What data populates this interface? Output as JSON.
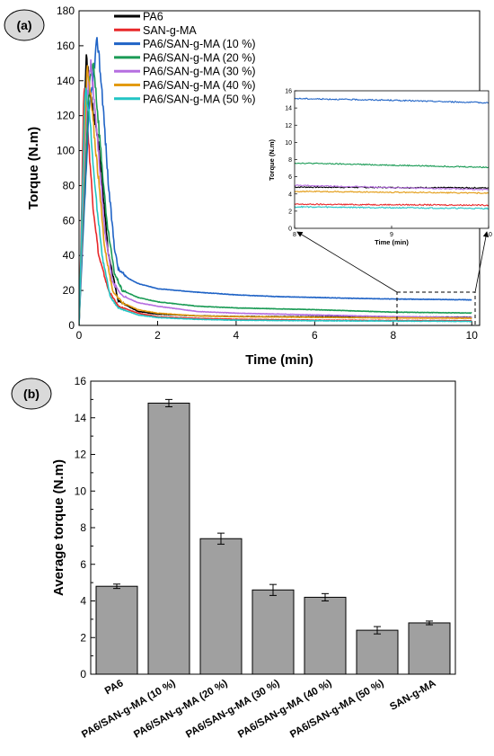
{
  "panels": {
    "a": "(a)",
    "b": "(b)"
  },
  "chart_data": [
    {
      "type": "line",
      "panel": "(a)",
      "xlabel": "Time (min)",
      "ylabel": "Torque (N.m)",
      "xlim": [
        0,
        10.2
      ],
      "ylim": [
        0,
        180
      ],
      "xticks": [
        0,
        2,
        4,
        6,
        8,
        10
      ],
      "yticks": [
        0,
        20,
        40,
        60,
        80,
        100,
        120,
        140,
        160,
        180
      ],
      "legend_position": "top",
      "series": [
        {
          "name": "PA6",
          "color": "#000000",
          "peak_x": 0.18,
          "peak": 155,
          "plateau": 4.8,
          "x": [
            0,
            0.1,
            0.18,
            0.3,
            0.5,
            0.75,
            1,
            1.5,
            2,
            3,
            4,
            6,
            8,
            10
          ],
          "y": [
            0,
            80,
            155,
            130,
            105,
            40,
            14,
            8,
            6.5,
            5.5,
            5.1,
            4.9,
            4.8,
            4.7
          ]
        },
        {
          "name": "SAN-g-MA",
          "color": "#e8282a",
          "peak_x": 0.12,
          "peak": 138,
          "plateau": 2.8,
          "x": [
            0,
            0.07,
            0.12,
            0.2,
            0.35,
            0.5,
            0.75,
            1,
            1.5,
            2,
            3,
            4,
            6,
            8,
            10
          ],
          "y": [
            0,
            70,
            138,
            120,
            70,
            40,
            20,
            11,
            7,
            5,
            4,
            3.5,
            3,
            2.8,
            2.7
          ]
        },
        {
          "name": "PA6/SAN-g-MA (10 %)",
          "color": "#1f63c6",
          "peak_x": 0.47,
          "peak": 164,
          "plateau": 14.8,
          "x": [
            0,
            0.1,
            0.25,
            0.47,
            0.6,
            0.75,
            0.9,
            1,
            1.25,
            1.5,
            2,
            3,
            4,
            5,
            6,
            7,
            8,
            9,
            10
          ],
          "y": [
            0,
            50,
            120,
            164,
            130,
            80,
            45,
            32,
            27,
            24,
            21,
            19,
            17.5,
            16.5,
            16,
            15.5,
            15.1,
            14.9,
            14.6
          ]
        },
        {
          "name": "PA6/SAN-g-MA (20 %)",
          "color": "#1a9b55",
          "peak_x": 0.37,
          "peak": 151,
          "plateau": 7.4,
          "x": [
            0,
            0.1,
            0.25,
            0.37,
            0.5,
            0.7,
            0.9,
            1.1,
            1.5,
            2,
            3,
            4,
            6,
            8,
            10
          ],
          "y": [
            0,
            60,
            135,
            151,
            115,
            60,
            30,
            20,
            16,
            13.5,
            11,
            10,
            9,
            7.6,
            7.1
          ]
        },
        {
          "name": "PA6/SAN-g-MA (30 %)",
          "color": "#b56fe0",
          "peak_x": 0.3,
          "peak": 150,
          "plateau": 4.6,
          "x": [
            0,
            0.1,
            0.2,
            0.3,
            0.45,
            0.65,
            0.85,
            1.1,
            1.5,
            2,
            3,
            4,
            6,
            8,
            10
          ],
          "y": [
            0,
            70,
            130,
            150,
            112,
            55,
            25,
            17,
            13,
            11,
            8,
            7,
            6,
            5,
            4.5
          ]
        },
        {
          "name": "PA6/SAN-g-MA (40 %)",
          "color": "#e39b12",
          "peak_x": 0.2,
          "peak": 148,
          "plateau": 4.2,
          "x": [
            0,
            0.08,
            0.2,
            0.3,
            0.45,
            0.65,
            0.85,
            1.1,
            1.5,
            2,
            3,
            4,
            6,
            8,
            10
          ],
          "y": [
            0,
            65,
            148,
            130,
            95,
            45,
            20,
            13,
            9,
            7,
            5.5,
            5,
            4.6,
            4.3,
            4.1
          ]
        },
        {
          "name": "PA6/SAN-g-MA (50 %)",
          "color": "#22c4c4",
          "peak_x": 0.15,
          "peak": 135,
          "plateau": 2.4,
          "x": [
            0,
            0.07,
            0.15,
            0.25,
            0.4,
            0.6,
            0.8,
            1,
            1.5,
            2,
            3,
            4,
            6,
            8,
            10
          ],
          "y": [
            0,
            60,
            135,
            125,
            80,
            38,
            16,
            10,
            6,
            4.5,
            3.5,
            3,
            2.7,
            2.5,
            2.3
          ]
        }
      ],
      "inset": {
        "xlabel": "Time (min)",
        "ylabel": "Torque (N.m)",
        "xlim": [
          8,
          10
        ],
        "ylim": [
          0,
          16
        ],
        "xticks": [
          8,
          9,
          10
        ],
        "yticks": [
          0,
          2,
          4,
          6,
          8,
          10,
          12,
          14,
          16
        ],
        "zoom_box": {
          "x": [
            8,
            10
          ],
          "y": [
            0,
            17
          ]
        }
      }
    },
    {
      "type": "bar",
      "panel": "(b)",
      "xlabel": "",
      "ylabel": "Average torque (N.m)",
      "ylim": [
        0,
        16
      ],
      "yticks": [
        0,
        2,
        4,
        6,
        8,
        10,
        12,
        14,
        16
      ],
      "categories": [
        "PA6",
        "PA6/SAN-g-MA (10 %)",
        "PA6/SAN-g-MA (20 %)",
        "PA6/SAN-g-MA (30 %)",
        "PA6/SAN-g-MA (40 %)",
        "PA6/SAN-g-MA (50 %)",
        "SAN-g-MA"
      ],
      "values": [
        4.8,
        14.8,
        7.4,
        4.6,
        4.2,
        2.4,
        2.8
      ],
      "errors": [
        0.12,
        0.2,
        0.3,
        0.3,
        0.2,
        0.2,
        0.1
      ],
      "bar_color": "#a0a0a0"
    }
  ]
}
